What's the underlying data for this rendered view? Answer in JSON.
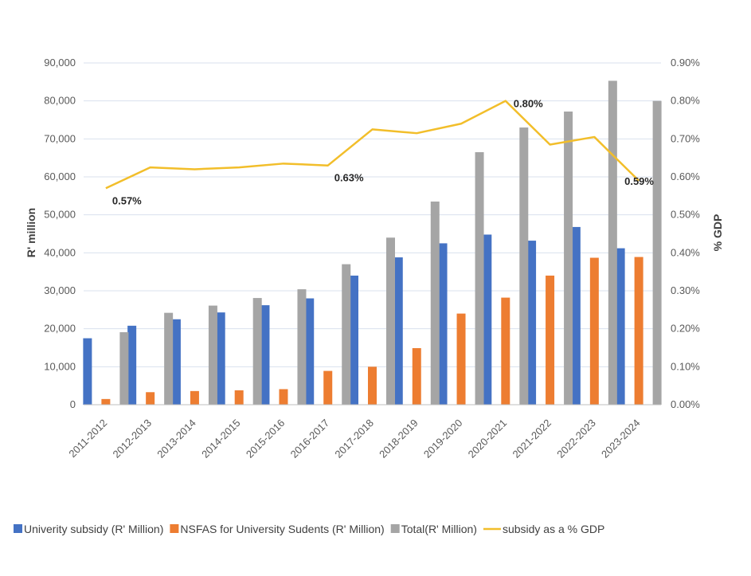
{
  "chart_data": {
    "type": "bar",
    "title": "",
    "categories": [
      "2011-2012",
      "2012-2013",
      "2013-2014",
      "2014-2015",
      "2015-2016",
      "2016-2017",
      "2017-2018",
      "2018-2019",
      "2019-2020",
      "2020-2021",
      "2021-2022",
      "2022-2023",
      "2023-2024"
    ],
    "series": [
      {
        "name": "Univerity subsidy (R' Million)",
        "type": "bar",
        "axis": "left",
        "color": "#4472C4",
        "values": [
          17500,
          20800,
          22500,
          24300,
          26200,
          28000,
          34000,
          38800,
          42500,
          44800,
          43200,
          46800,
          41200
        ]
      },
      {
        "name": "NSFAS for University Sudents (R' Million)",
        "type": "bar",
        "axis": "left",
        "color": "#ED7D31",
        "values": [
          1500,
          3300,
          3600,
          3800,
          4100,
          8900,
          10000,
          14900,
          24000,
          28200,
          34000,
          38700,
          38900
        ]
      },
      {
        "name": "Total(R' Million)",
        "type": "bar",
        "axis": "left",
        "color": "#A5A5A5",
        "values": [
          19100,
          24200,
          26100,
          28100,
          30400,
          37000,
          44000,
          53500,
          66500,
          73000,
          77200,
          85300,
          80000
        ]
      },
      {
        "name": "subsidy as a % GDP",
        "type": "line",
        "axis": "right",
        "color": "#F2BE2A",
        "values": [
          0.57,
          0.625,
          0.62,
          0.625,
          0.635,
          0.63,
          0.725,
          0.715,
          0.74,
          0.8,
          0.685,
          0.705,
          0.59
        ]
      }
    ],
    "data_labels": [
      {
        "series": "subsidy as a % GDP",
        "index": 0,
        "text": "0.57%"
      },
      {
        "series": "subsidy as a % GDP",
        "index": 5,
        "text": "0.63%"
      },
      {
        "series": "subsidy as a % GDP",
        "index": 9,
        "text": "0.80%"
      },
      {
        "series": "subsidy as a % GDP",
        "index": 12,
        "text": "0.59%"
      }
    ],
    "ylabel": "R' million",
    "ylabel_right": "% GDP",
    "ylim": [
      0,
      90000
    ],
    "ylim_right": [
      0,
      0.9
    ],
    "yticks": [
      "0",
      "10,000",
      "20,000",
      "30,000",
      "40,000",
      "50,000",
      "60,000",
      "70,000",
      "80,000",
      "90,000"
    ],
    "yticks_right": [
      "0.00%",
      "0.10%",
      "0.20%",
      "0.30%",
      "0.40%",
      "0.50%",
      "0.60%",
      "0.70%",
      "0.80%",
      "0.90%"
    ],
    "grid": true,
    "legend": "bottom"
  }
}
